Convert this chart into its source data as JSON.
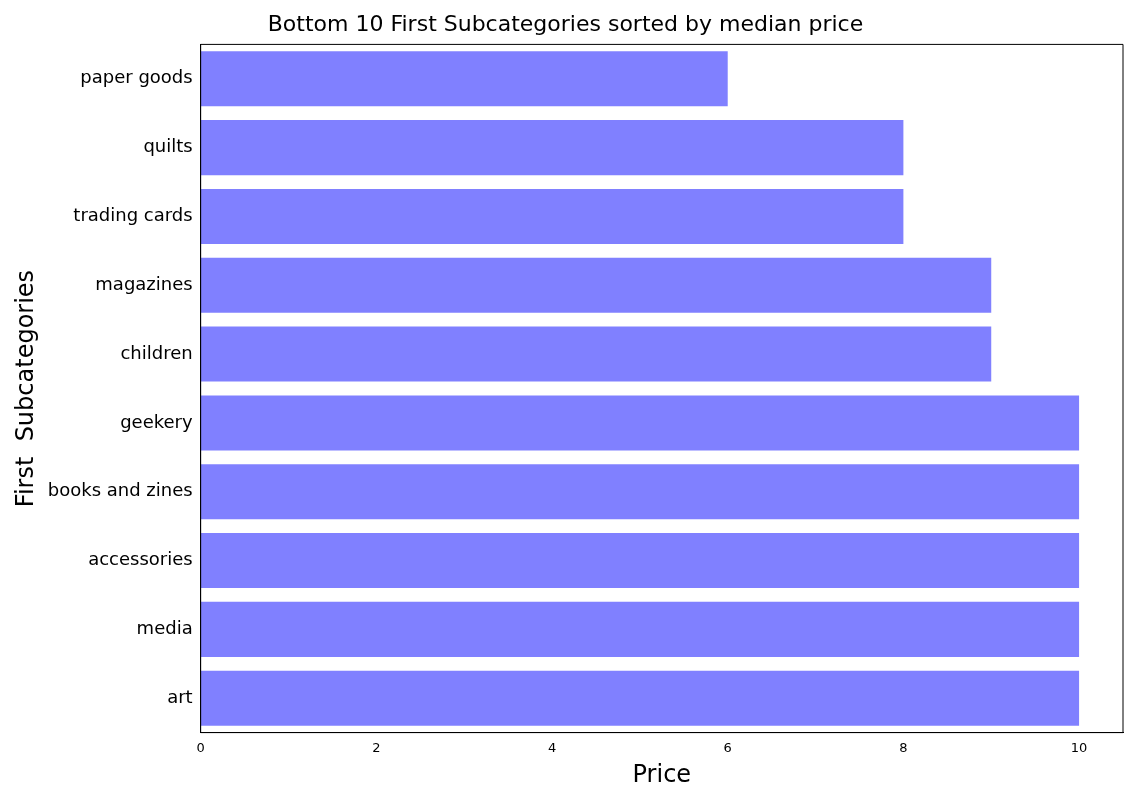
{
  "chart_data": {
    "type": "bar",
    "orientation": "horizontal",
    "title": "Bottom 10 First Subcategories sorted by median price",
    "xlabel": "Price",
    "ylabel": "First  Subcategories",
    "categories": [
      "paper goods",
      "quilts",
      "trading cards",
      "magazines",
      "children",
      "geekery",
      "books and zines",
      "accessories",
      "media",
      "art"
    ],
    "values": [
      6,
      8,
      8,
      9,
      9,
      10,
      10,
      10,
      10,
      10
    ],
    "color": "#8080ff",
    "xlim": [
      0,
      10.5
    ],
    "xticks": [
      0,
      2,
      4,
      6,
      8,
      10
    ],
    "grid": false,
    "legend": false
  }
}
